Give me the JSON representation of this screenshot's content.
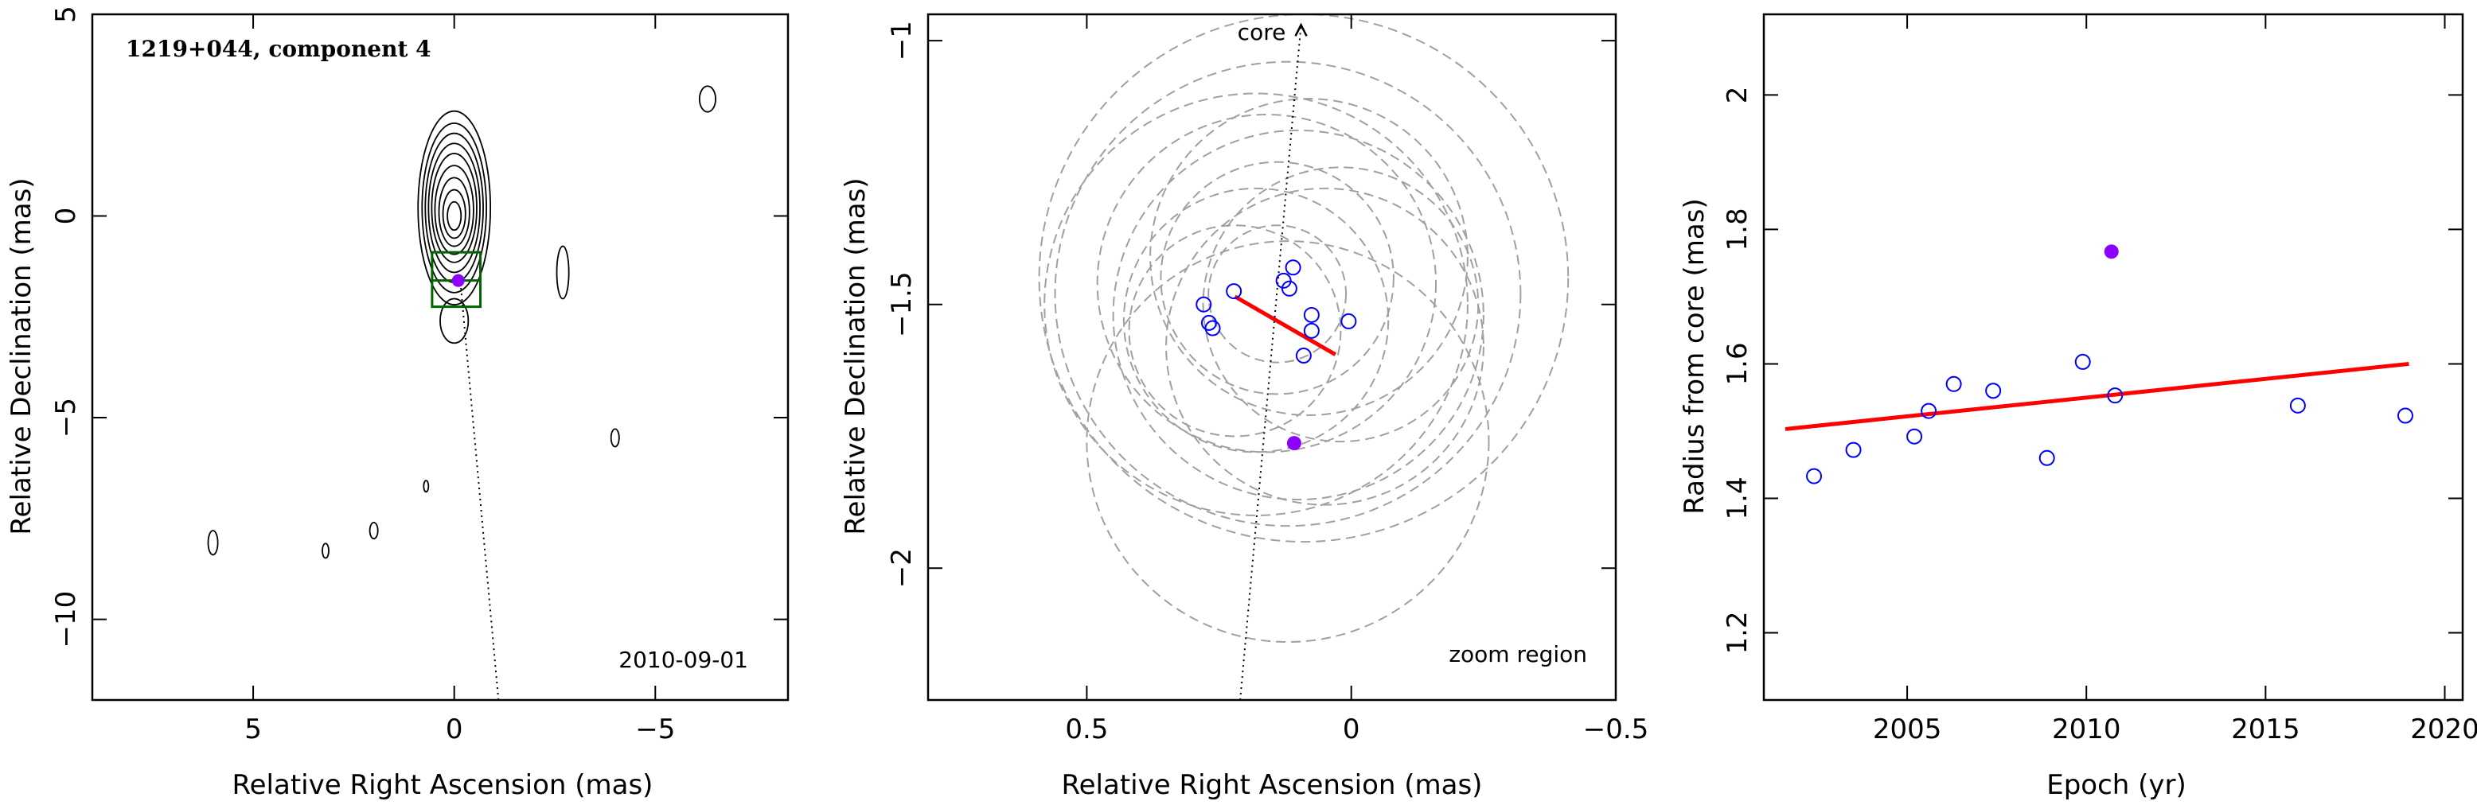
{
  "colors": {
    "axis": "#000000",
    "open_marker": "#0000ff",
    "filled_marker": "#8b00ff",
    "trend_line": "#ff0000",
    "circles": "#a0a0a0",
    "box": "#006400",
    "contour": "#000000"
  },
  "chart_data": [
    {
      "type": "contour",
      "title": "1219+044, component 4",
      "annotation": "2010-09-01",
      "xlabel": "Relative Right Ascension (mas)",
      "ylabel": "Relative Declination (mas)",
      "xlim": [
        9.0,
        -8.3
      ],
      "ylim": [
        -12.0,
        5.0
      ],
      "xticks": [
        5,
        0,
        -5
      ],
      "yticks": [
        5,
        0,
        -5,
        -10
      ],
      "xtick_labels": [
        "5",
        "0",
        "−5"
      ],
      "ytick_labels": [
        "5",
        "0",
        "−5",
        "−10"
      ],
      "jet_direction_line": [
        [
          -1.1,
          -12.0
        ],
        [
          -0.15,
          -1.6
        ]
      ],
      "zoom_box": {
        "x": [
          0.55,
          -0.65
        ],
        "y": [
          -0.9,
          -2.25
        ]
      },
      "component": {
        "x": -0.1,
        "y": -1.6
      },
      "contours": [
        {
          "x": 0.0,
          "y": 0.2,
          "rx": 0.9,
          "ry": 2.4
        },
        {
          "x": 0.0,
          "y": 0.2,
          "rx": 0.8,
          "ry": 2.1
        },
        {
          "x": 0.0,
          "y": 0.2,
          "rx": 0.72,
          "ry": 1.85
        },
        {
          "x": 0.0,
          "y": 0.2,
          "rx": 0.64,
          "ry": 1.6
        },
        {
          "x": 0.0,
          "y": 0.2,
          "rx": 0.56,
          "ry": 1.35
        },
        {
          "x": 0.0,
          "y": 0.15,
          "rx": 0.48,
          "ry": 1.1
        },
        {
          "x": 0.0,
          "y": 0.1,
          "rx": 0.38,
          "ry": 0.85
        },
        {
          "x": 0.0,
          "y": 0.05,
          "rx": 0.28,
          "ry": 0.6
        },
        {
          "x": 0.0,
          "y": 0.0,
          "rx": 0.17,
          "ry": 0.35
        },
        {
          "x": 0.0,
          "y": -2.6,
          "rx": 0.35,
          "ry": 0.55
        },
        {
          "x": -6.3,
          "y": 2.9,
          "rx": 0.2,
          "ry": 0.32
        },
        {
          "x": -2.7,
          "y": -1.4,
          "rx": 0.15,
          "ry": 0.65
        },
        {
          "x": -4.0,
          "y": -5.5,
          "rx": 0.1,
          "ry": 0.22
        },
        {
          "x": 6.0,
          "y": -8.1,
          "rx": 0.12,
          "ry": 0.3
        },
        {
          "x": 3.2,
          "y": -8.3,
          "rx": 0.08,
          "ry": 0.18
        },
        {
          "x": 2.0,
          "y": -7.8,
          "rx": 0.1,
          "ry": 0.2
        },
        {
          "x": 0.7,
          "y": -6.7,
          "rx": 0.06,
          "ry": 0.14
        }
      ]
    },
    {
      "type": "scatter",
      "annotation_top": "core",
      "annotation_bottom": "zoom region",
      "xlabel": "Relative Right Ascension (mas)",
      "ylabel": "Relative Declination (mas)",
      "xlim": [
        0.8,
        -0.5
      ],
      "ylim": [
        -2.25,
        -0.95
      ],
      "xticks": [
        0.5,
        0,
        -0.5
      ],
      "yticks": [
        -1,
        -1.5,
        -2
      ],
      "xtick_labels": [
        "0.5",
        "0",
        "−0.5"
      ],
      "ytick_labels": [
        "−1",
        "−1.5",
        "−2"
      ],
      "core_direction_line": [
        [
          0.21,
          -2.25
        ],
        [
          0.095,
          -0.97
        ]
      ],
      "open_points": [
        {
          "x": 0.279,
          "y": -1.5
        },
        {
          "x": 0.269,
          "y": -1.535
        },
        {
          "x": 0.262,
          "y": -1.545
        },
        {
          "x": 0.222,
          "y": -1.475
        },
        {
          "x": 0.128,
          "y": -1.455
        },
        {
          "x": 0.117,
          "y": -1.47
        },
        {
          "x": 0.11,
          "y": -1.43
        },
        {
          "x": 0.075,
          "y": -1.52
        },
        {
          "x": 0.075,
          "y": -1.55
        },
        {
          "x": 0.09,
          "y": -1.597
        },
        {
          "x": 0.005,
          "y": -1.532
        }
      ],
      "filled_points": [
        {
          "x": 0.108,
          "y": -1.763
        }
      ],
      "trend_line": [
        [
          0.22,
          -1.485
        ],
        [
          0.03,
          -1.595
        ]
      ],
      "dashed_circles": [
        {
          "x": 0.02,
          "y": -1.5,
          "r": 0.26
        },
        {
          "x": 0.05,
          "y": -1.58,
          "r": 0.3
        },
        {
          "x": 0.1,
          "y": -1.52,
          "r": 0.35
        },
        {
          "x": 0.12,
          "y": -1.48,
          "r": 0.44
        },
        {
          "x": 0.16,
          "y": -1.46,
          "r": 0.32
        },
        {
          "x": 0.18,
          "y": -1.53,
          "r": 0.25
        },
        {
          "x": 0.22,
          "y": -1.55,
          "r": 0.2
        },
        {
          "x": 0.14,
          "y": -1.45,
          "r": 0.22
        },
        {
          "x": 0.08,
          "y": -1.41,
          "r": 0.3
        },
        {
          "x": 0.14,
          "y": -1.48,
          "r": 0.13
        },
        {
          "x": 0.12,
          "y": -1.76,
          "r": 0.38
        },
        {
          "x": 0.18,
          "y": -1.5,
          "r": 0.4
        },
        {
          "x": 0.09,
          "y": -1.45,
          "r": 0.5
        }
      ]
    },
    {
      "type": "scatter",
      "xlabel": "Epoch (yr)",
      "ylabel": "Radius from core (mas)",
      "xlim": [
        2001.0,
        2020.5
      ],
      "ylim": [
        1.1,
        2.12
      ],
      "xticks": [
        2005,
        2010,
        2015,
        2020
      ],
      "yticks": [
        1.2,
        1.4,
        1.6,
        1.8,
        2
      ],
      "xtick_labels": [
        "2005",
        "2010",
        "2015",
        "2020"
      ],
      "ytick_labels": [
        "1.2",
        "1.4",
        "1.6",
        "1.8",
        "2"
      ],
      "open_points": [
        {
          "x": 2002.4,
          "y": 1.433
        },
        {
          "x": 2003.5,
          "y": 1.472
        },
        {
          "x": 2005.2,
          "y": 1.492
        },
        {
          "x": 2005.6,
          "y": 1.53
        },
        {
          "x": 2006.3,
          "y": 1.57
        },
        {
          "x": 2007.4,
          "y": 1.56
        },
        {
          "x": 2008.9,
          "y": 1.46
        },
        {
          "x": 2009.9,
          "y": 1.603
        },
        {
          "x": 2010.8,
          "y": 1.553
        },
        {
          "x": 2015.9,
          "y": 1.538
        },
        {
          "x": 2018.9,
          "y": 1.523
        }
      ],
      "filled_points": [
        {
          "x": 2010.7,
          "y": 1.767
        }
      ],
      "trend_line": [
        [
          2001.6,
          1.503
        ],
        [
          2019.0,
          1.6
        ]
      ]
    }
  ]
}
